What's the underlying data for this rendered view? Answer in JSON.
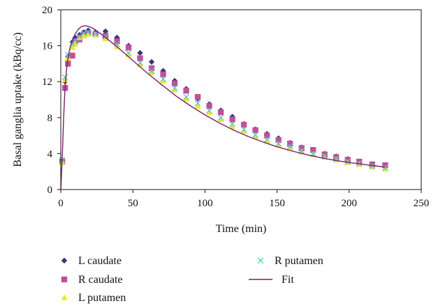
{
  "chart_data": {
    "type": "scatter",
    "title": "",
    "xlabel": "Time (min)",
    "ylabel": "Basal ganglia uptake (kBq/cc)",
    "xlim": [
      0,
      250
    ],
    "ylim": [
      0,
      20
    ],
    "xticks": [
      0,
      50,
      100,
      150,
      200,
      250
    ],
    "yticks": [
      0,
      4,
      8,
      12,
      16,
      20
    ],
    "grid": false,
    "legend_placement": "bottom",
    "series": [
      {
        "name": "L caudate",
        "marker": "diamond",
        "color": "#2e3a7a",
        "x": [
          1,
          3,
          5,
          8,
          10,
          13,
          16,
          19,
          24,
          31,
          39,
          47,
          55,
          63,
          71,
          79,
          87,
          95,
          103,
          111,
          119,
          127,
          135,
          143,
          151,
          159,
          167,
          175,
          183,
          191,
          199,
          207,
          216,
          225
        ],
        "y": [
          3.2,
          12.0,
          14.8,
          16.4,
          16.9,
          17.2,
          17.5,
          17.7,
          17.5,
          17.6,
          16.9,
          16.0,
          15.2,
          14.2,
          13.2,
          12.1,
          11.2,
          10.1,
          9.5,
          8.8,
          8.1,
          7.3,
          6.7,
          6.2,
          5.7,
          5.2,
          4.7,
          4.4,
          4.0,
          3.7,
          3.4,
          3.1,
          2.8,
          2.7
        ]
      },
      {
        "name": "R caudate",
        "marker": "square",
        "color": "#c0509a",
        "x": [
          1,
          3,
          5,
          8,
          10,
          13,
          16,
          19,
          24,
          31,
          39,
          47,
          55,
          63,
          71,
          79,
          87,
          95,
          103,
          111,
          119,
          127,
          135,
          143,
          151,
          159,
          167,
          175,
          183,
          191,
          199,
          207,
          216,
          225
        ],
        "y": [
          3.1,
          11.3,
          14.0,
          14.9,
          16.5,
          16.7,
          17.2,
          17.4,
          17.3,
          17.1,
          16.5,
          15.8,
          14.6,
          13.5,
          12.8,
          11.8,
          11.0,
          10.3,
          9.3,
          8.6,
          7.8,
          7.2,
          6.6,
          6.0,
          5.5,
          5.1,
          4.6,
          4.4,
          3.9,
          3.6,
          3.3,
          3.1,
          2.8,
          2.7
        ]
      },
      {
        "name": "L putamen",
        "marker": "triangle",
        "color": "#e8e82a",
        "x": [
          1,
          3,
          5,
          8,
          10,
          13,
          16,
          19,
          24,
          31,
          39,
          47,
          55,
          63,
          71,
          79,
          87,
          95,
          103,
          111,
          119,
          127,
          135,
          143,
          151,
          159,
          167,
          175,
          183,
          191,
          199,
          207,
          216,
          225
        ],
        "y": [
          3.0,
          12.2,
          14.6,
          15.8,
          16.2,
          16.9,
          17.1,
          17.3,
          17.2,
          16.8,
          15.9,
          15.0,
          13.9,
          13.0,
          12.1,
          11.1,
          10.1,
          9.3,
          8.6,
          7.8,
          7.0,
          6.5,
          5.9,
          5.4,
          5.0,
          4.6,
          4.2,
          3.9,
          3.6,
          3.3,
          3.0,
          2.8,
          2.5,
          2.3
        ]
      },
      {
        "name": "R putamen",
        "marker": "x",
        "color": "#5bc0d6",
        "x": [
          1,
          3,
          5,
          8,
          10,
          13,
          16,
          19,
          24,
          31,
          39,
          47,
          55,
          63,
          71,
          79,
          87,
          95,
          103,
          111,
          119,
          127,
          135,
          143,
          151,
          159,
          167,
          175,
          183,
          191,
          199,
          207,
          216,
          225
        ],
        "y": [
          3.3,
          12.5,
          15.0,
          16.2,
          16.6,
          17.0,
          17.4,
          17.5,
          17.3,
          17.0,
          16.2,
          15.2,
          14.1,
          13.2,
          12.3,
          11.3,
          10.3,
          9.6,
          8.8,
          8.0,
          7.3,
          6.7,
          6.1,
          5.6,
          5.1,
          4.8,
          4.3,
          4.0,
          3.7,
          3.4,
          3.1,
          2.9,
          2.6,
          2.4
        ]
      },
      {
        "name": "Fit",
        "marker": "line",
        "color": "#7a1f6e",
        "x": [
          0,
          1,
          2,
          3,
          4,
          5,
          6,
          8,
          10,
          12,
          14,
          16,
          18,
          20,
          22,
          24,
          27,
          30,
          35,
          40,
          45,
          50,
          60,
          70,
          80,
          90,
          100,
          110,
          120,
          130,
          140,
          150,
          160,
          170,
          180,
          190,
          200,
          210,
          220,
          225
        ],
        "y": [
          0.0,
          3.5,
          8.0,
          11.5,
          13.4,
          14.6,
          15.5,
          16.6,
          17.3,
          17.8,
          18.1,
          18.2,
          18.2,
          18.1,
          17.95,
          17.75,
          17.4,
          17.05,
          16.4,
          15.75,
          15.05,
          14.35,
          12.95,
          11.65,
          10.4,
          9.3,
          8.3,
          7.4,
          6.6,
          5.9,
          5.3,
          4.75,
          4.3,
          3.9,
          3.55,
          3.25,
          3.0,
          2.8,
          2.6,
          2.5
        ]
      }
    ]
  }
}
